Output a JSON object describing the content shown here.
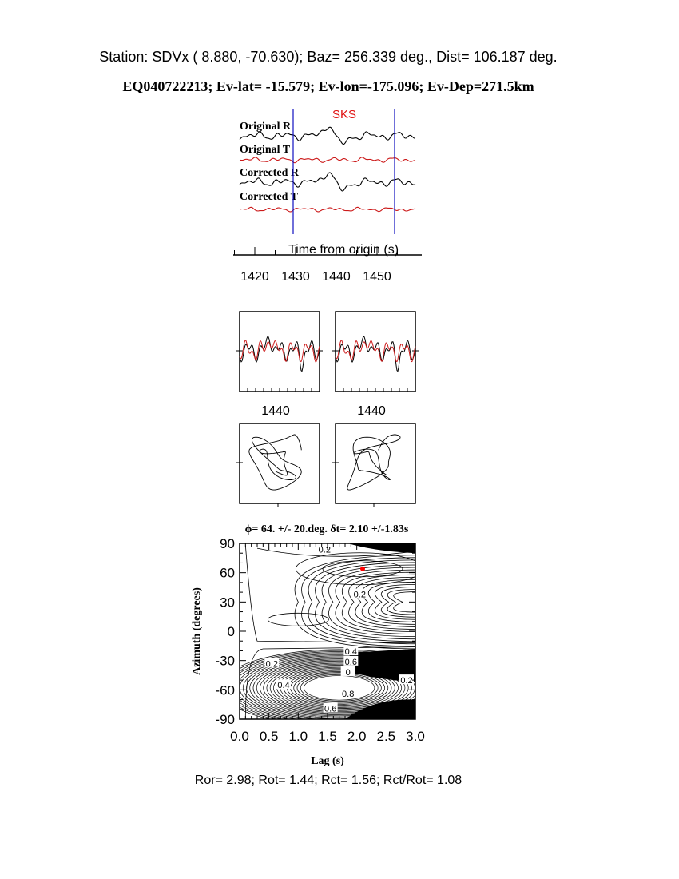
{
  "header": {
    "station_line": "Station: SDVx ( 8.880,  -70.630); Baz=  256.339 deg., Dist=  106.187 deg.",
    "event_line": "EQ040722213; Ev-lat= -15.579; Ev-lon=-175.096; Ev-Dep=271.5km"
  },
  "colors": {
    "radial": "#000000",
    "transverse": "#cc1a1a",
    "window": "#1010c0",
    "phase": "#e01010",
    "best_fit": "#ff0000"
  },
  "chart_data": [
    {
      "type": "line",
      "title": "",
      "phase_label": "SKS",
      "traces": [
        "Original R",
        "Original T",
        "Corrected R",
        "Corrected T"
      ],
      "xlabel": "Time from origin (s)",
      "xticks": [
        "1420",
        "1430",
        "1440",
        "1450"
      ],
      "xlim": [
        1416,
        1459
      ],
      "window": [
        1430,
        1455
      ]
    },
    {
      "type": "line",
      "panels": [
        "original",
        "corrected"
      ],
      "xtick_label": "1440"
    },
    {
      "type": "scatter",
      "panels": [
        "original-particle-motion",
        "corrected-particle-motion"
      ]
    },
    {
      "type": "heatmap",
      "title": "ϕ= 64. +/- 20.deg. δt= 2.10 +/-1.83s",
      "xlabel": "Lag (s)",
      "ylabel": "Azimuth (degrees)",
      "xlim": [
        0,
        3
      ],
      "ylim": [
        -90,
        90
      ],
      "xticks": [
        "0.0",
        "0.5",
        "1.0",
        "1.5",
        "2.0",
        "2.5",
        "3.0"
      ],
      "yticks": [
        "90",
        "60",
        "30",
        "0",
        "-30",
        "-60",
        "-90"
      ],
      "contour_labels": [
        "0.2",
        "0.2",
        "0.2",
        "0.4",
        "0.6",
        "0",
        "0.2",
        "0.4",
        "0.8",
        "0.6"
      ],
      "best_fit": {
        "lag": 2.1,
        "azimuth": 64
      }
    }
  ],
  "footer": {
    "ratios": "Ror= 2.98; Rot= 1.44; Rct= 1.56; Rct/Rot= 1.08"
  }
}
